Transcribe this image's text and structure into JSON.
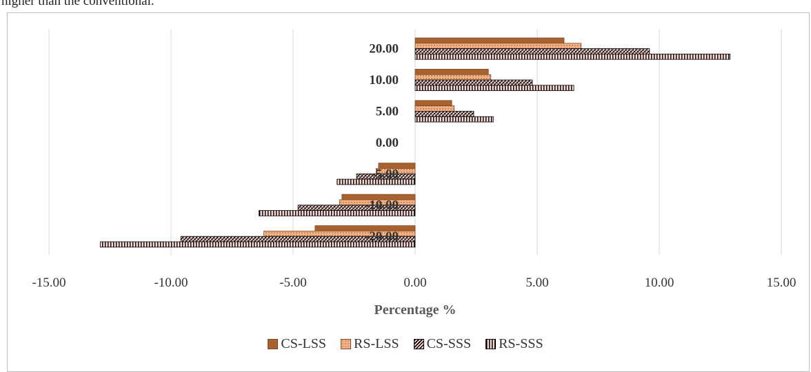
{
  "page": {
    "top_text": "higher than the conventional."
  },
  "colors": {
    "brown": "#a9612e",
    "peach": "#f4b183",
    "pink": "#f6d4cf",
    "grid": "#d9d9d9",
    "hatch": "#000000"
  },
  "chart_data": {
    "type": "bar",
    "orientation": "horizontal",
    "categories": [
      "-20.00",
      "-10.00",
      "-5.00",
      "0.00",
      "5.00",
      "10.00",
      "20.00"
    ],
    "series": [
      {
        "name": "CS-LSS",
        "pattern": "solid",
        "values": [
          -4.1,
          -3.0,
          -1.5,
          0,
          1.5,
          3.0,
          6.1
        ]
      },
      {
        "name": "RS-LSS",
        "pattern": "dots",
        "values": [
          -6.2,
          -3.1,
          -1.6,
          0,
          1.6,
          3.1,
          6.8
        ]
      },
      {
        "name": "CS-SSS",
        "pattern": "crosshatch",
        "values": [
          -9.6,
          -4.8,
          -2.4,
          0,
          2.4,
          4.8,
          9.6
        ]
      },
      {
        "name": "RS-SSS",
        "pattern": "vertical",
        "values": [
          -12.9,
          -6.4,
          -3.2,
          0,
          3.2,
          6.5,
          12.9
        ]
      }
    ],
    "xlabel": "Percentage %",
    "xlim": [
      -15,
      15
    ],
    "xticks": [
      "-15.00",
      "-10.00",
      "-5.00",
      "0.00",
      "5.00",
      "10.00",
      "15.00"
    ],
    "grid": "vertical",
    "legend": "bottom"
  }
}
